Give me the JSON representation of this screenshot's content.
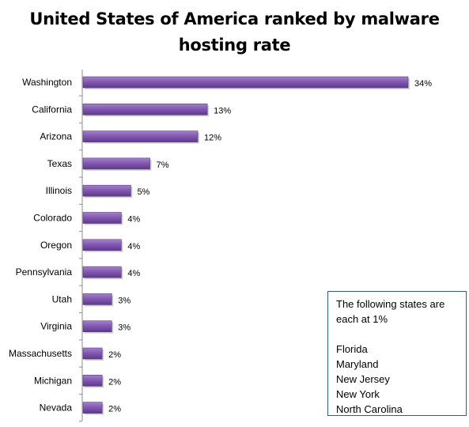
{
  "chart_data": {
    "type": "bar",
    "orientation": "horizontal",
    "title": "United States of America ranked by malware hosting rate",
    "categories": [
      "Washington",
      "California",
      "Arizona",
      "Texas",
      "Illinois",
      "Colorado",
      "Oregon",
      "Pennsylvania",
      "Utah",
      "Virginia",
      "Massachusetts",
      "Michigan",
      "Nevada"
    ],
    "values": [
      34,
      13,
      12,
      7,
      5,
      4,
      4,
      4,
      3,
      3,
      2,
      2,
      2
    ],
    "value_labels": [
      "34%",
      "13%",
      "12%",
      "7%",
      "5%",
      "4%",
      "4%",
      "4%",
      "3%",
      "3%",
      "2%",
      "2%",
      "2%"
    ],
    "xlabel": "",
    "ylabel": "",
    "xlim": [
      0,
      34
    ],
    "grid": false,
    "bar_color": "#7b4fa8",
    "note": {
      "text": "The following states are each at 1%",
      "items": [
        "Florida",
        "Maryland",
        "New Jersey",
        "New York",
        "North Carolina"
      ]
    }
  }
}
